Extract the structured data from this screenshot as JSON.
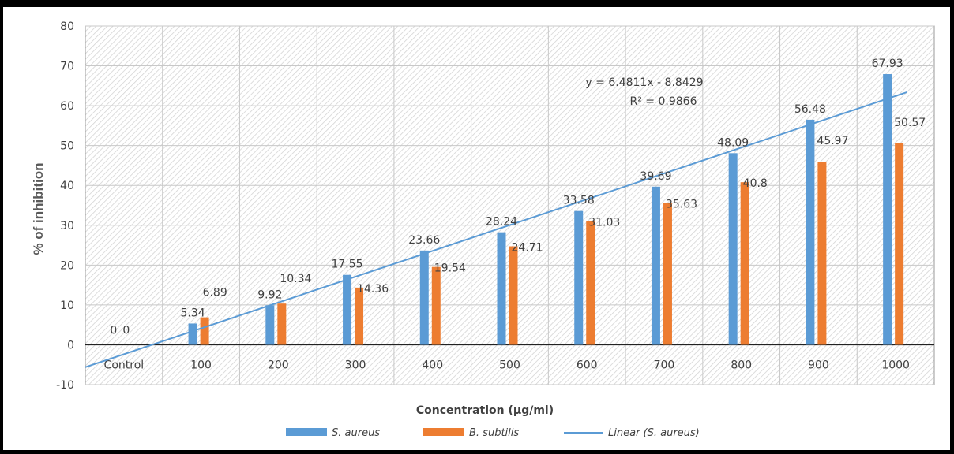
{
  "chart_data": {
    "type": "bar",
    "title": "",
    "xlabel": "Concentration (µg/ml)",
    "ylabel": "% of inhibition",
    "ylim": [
      -10,
      80
    ],
    "yticks": [
      "-10",
      "0",
      "10",
      "20",
      "30",
      "40",
      "50",
      "60",
      "70",
      "80"
    ],
    "grid": true,
    "legend_position": "bottom",
    "categories": [
      "Control",
      "100",
      "200",
      "300",
      "400",
      "500",
      "600",
      "700",
      "800",
      "900",
      "1000"
    ],
    "series": [
      {
        "name": "S. aureus",
        "color": "#5b9bd5",
        "values": [
          0,
          5.34,
          9.92,
          17.55,
          23.66,
          28.24,
          33.58,
          39.69,
          48.09,
          56.48,
          67.93
        ],
        "labels": [
          "0",
          "5.34",
          "9.92",
          "17.55",
          "23.66",
          "28.24",
          "33.58",
          "39.69",
          "48.09",
          "56.48",
          "67.93"
        ]
      },
      {
        "name": "B. subtilis",
        "color": "#ed7d31",
        "values": [
          0,
          6.89,
          10.34,
          14.36,
          19.54,
          24.71,
          31.03,
          35.63,
          40.8,
          45.97,
          50.57
        ],
        "labels": [
          "0",
          "6.89",
          "10.34",
          "14.36",
          "19.54",
          "24.71",
          "31.03",
          "35.63",
          "40.8",
          "45.97",
          "50.57"
        ]
      }
    ],
    "trendline": {
      "name": "Linear (S. aureus)",
      "color": "#5b9bd5",
      "slope": 6.4811,
      "intercept": -8.8429,
      "equation": "y = 6.4811x - 8.8429",
      "r_squared": "R² = 0.9866"
    }
  }
}
